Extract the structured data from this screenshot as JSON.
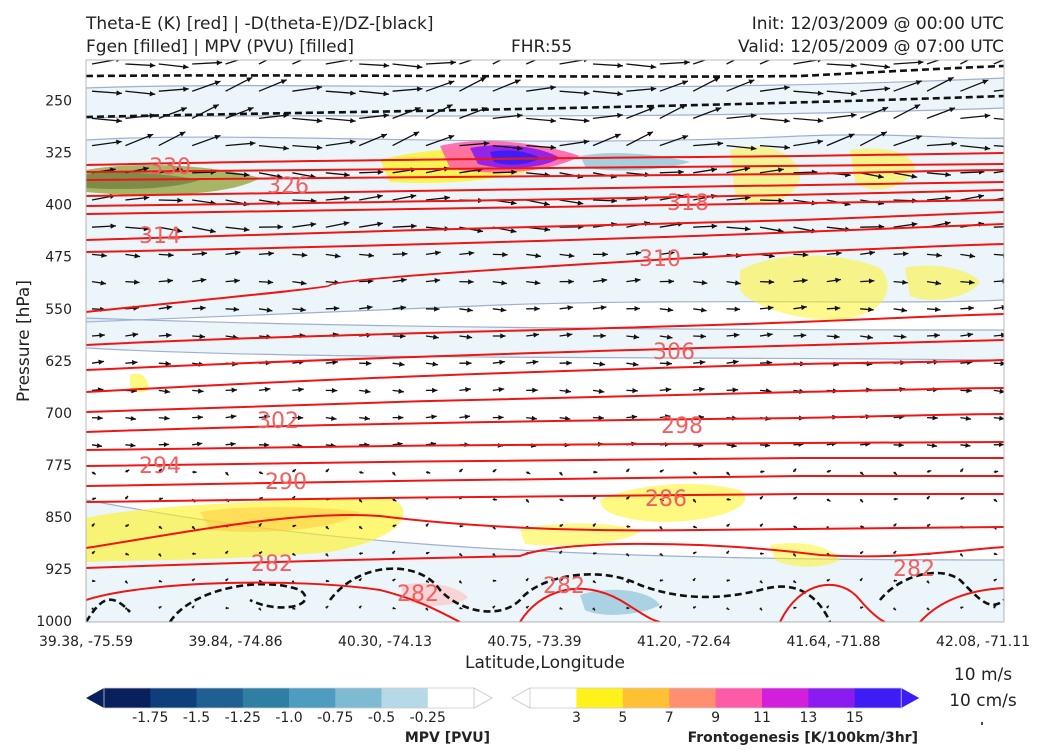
{
  "header": {
    "left_line1": "Theta-E (K) [red] | -D(theta-E)/DZ-[black]",
    "left_line2": "Fgen [filled] | MPV (PVU) [filled]",
    "fhr": "FHR:55",
    "init": "Init: 12/03/2009 @ 00:00 UTC",
    "valid": "Valid: 12/05/2009 @ 07:00 UTC"
  },
  "chart_data": {
    "type": "contour",
    "xlabel": "Latitude,Longitude",
    "ylabel": "Pressure [hPa]",
    "x_ticks": [
      "39.38, -75.59",
      "39.84, -74.86",
      "40.30, -74.13",
      "40.75, -73.39",
      "41.20, -72.64",
      "41.64, -71.88",
      "42.08, -71.11"
    ],
    "y_ticks": [
      250,
      325,
      400,
      475,
      550,
      625,
      700,
      775,
      850,
      925,
      1000
    ],
    "ylim": [
      1000,
      190
    ],
    "theta_e_labels": [
      330,
      326,
      318,
      314,
      310,
      306,
      302,
      298,
      294,
      290,
      286,
      282,
      282,
      282,
      282
    ],
    "wind_legend": {
      "line1": "10 m/s",
      "line2": "10 cm/s"
    },
    "mpv_colorbar": {
      "label": "MPV [PVU]",
      "ticks": [
        "-1.75",
        "-1.5",
        "-1.25",
        "-1.0",
        "-0.75",
        "-0.5",
        "-0.25"
      ],
      "colors": [
        "#08205c",
        "#0e3f7c",
        "#1f5f92",
        "#2f7fa5",
        "#4e9cbf",
        "#7fbad3",
        "#b5d9e6",
        "#ffffff"
      ]
    },
    "fgen_colorbar": {
      "label": "Frontogenesis [K/100km/3hr]",
      "ticks": [
        "3",
        "5",
        "7",
        "9",
        "11",
        "13",
        "15"
      ],
      "colors": [
        "#ffffff",
        "#fff21a",
        "#ffc034",
        "#ff8f6e",
        "#ff5aa8",
        "#d21fdc",
        "#8a1cf0",
        "#3d1cf5"
      ]
    }
  }
}
